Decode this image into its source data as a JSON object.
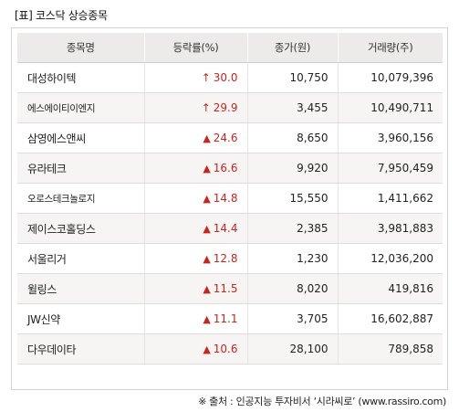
{
  "title": "[표] 코스닥 상승종목",
  "headers": [
    "종목명",
    "등락률(%)",
    "종가(원)",
    "거래량(주)"
  ],
  "colors": {
    "up": "#c8251f",
    "header_bg": "#ecebea"
  },
  "rows": [
    {
      "name": "대성하이텍",
      "arrow": "↑",
      "rate": "30.0",
      "price": "10,750",
      "volume": "10,079,396"
    },
    {
      "name": "에스에이티이엔지",
      "arrow": "↑",
      "rate": "29.9",
      "price": "3,455",
      "volume": "10,490,711"
    },
    {
      "name": "삼영에스앤씨",
      "arrow": "▲",
      "rate": "24.6",
      "price": "8,650",
      "volume": "3,960,156"
    },
    {
      "name": "유라테크",
      "arrow": "▲",
      "rate": "16.6",
      "price": "9,920",
      "volume": "7,950,459"
    },
    {
      "name": "오로스테크놀로지",
      "arrow": "▲",
      "rate": "14.8",
      "price": "15,550",
      "volume": "1,411,662"
    },
    {
      "name": "제이스코홀딩스",
      "arrow": "▲",
      "rate": "14.4",
      "price": "2,385",
      "volume": "3,981,883"
    },
    {
      "name": "서울리거",
      "arrow": "▲",
      "rate": "12.8",
      "price": "1,230",
      "volume": "12,036,200"
    },
    {
      "name": "윌링스",
      "arrow": "▲",
      "rate": "11.5",
      "price": "8,020",
      "volume": "419,816"
    },
    {
      "name": "JW신약",
      "arrow": "▲",
      "rate": "11.1",
      "price": "3,705",
      "volume": "16,602,887"
    },
    {
      "name": "다우데이타",
      "arrow": "▲",
      "rate": "10.6",
      "price": "28,100",
      "volume": "789,858"
    }
  ],
  "source": "※ 출처 : 인공지능 투자비서 ‘시라씨로’ (www.rassiro.com)"
}
